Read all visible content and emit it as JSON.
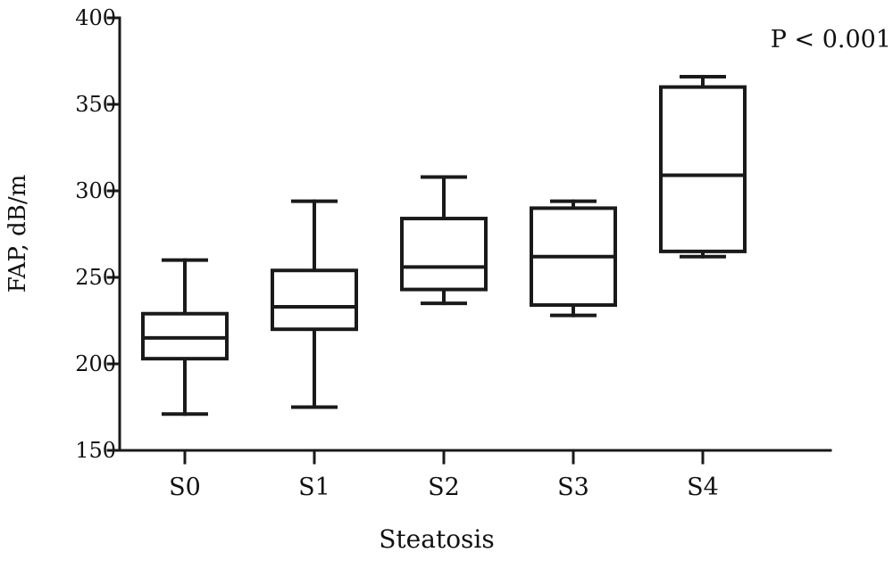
{
  "chart_data": {
    "type": "box",
    "title": "",
    "xlabel": "Steatosis",
    "ylabel": "FAP, dB/m",
    "annotation": "P < 0.001",
    "ylim": [
      150,
      400
    ],
    "yticks": [
      150,
      200,
      250,
      300,
      350,
      400
    ],
    "categories": [
      "S0",
      "S1",
      "S2",
      "S3",
      "S4"
    ],
    "boxes": [
      {
        "category": "S0",
        "min": 171,
        "q1": 203,
        "median": 215,
        "q3": 229,
        "max": 260
      },
      {
        "category": "S1",
        "min": 175,
        "q1": 220,
        "median": 233,
        "q3": 254,
        "max": 294
      },
      {
        "category": "S2",
        "min": 235,
        "q1": 243,
        "median": 256,
        "q3": 284,
        "max": 308
      },
      {
        "category": "S3",
        "min": 228,
        "q1": 234,
        "median": 262,
        "q3": 290,
        "max": 294
      },
      {
        "category": "S4",
        "min": 262,
        "q1": 265,
        "median": 309,
        "q3": 360,
        "max": 366
      }
    ],
    "grid": false,
    "legend": "none",
    "colors": {
      "line": "#1a1a1a",
      "background": "#ffffff"
    }
  }
}
